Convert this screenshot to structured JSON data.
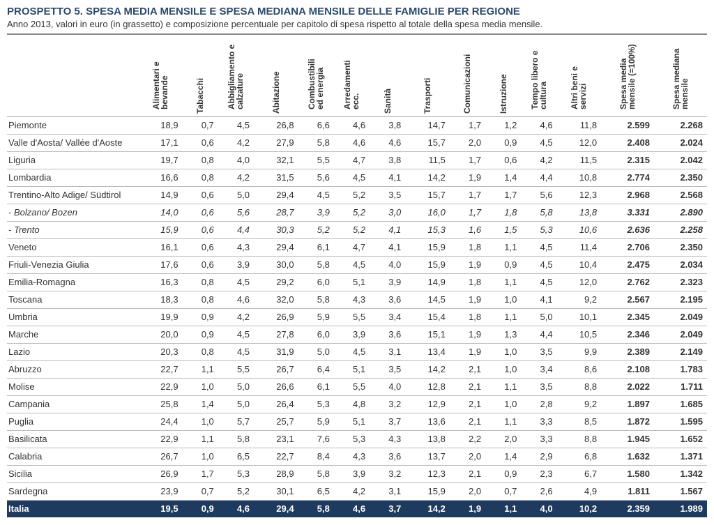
{
  "header": {
    "title": "PROSPETTO 5. SPESA MEDIA MENSILE E SPESA MEDIANA MENSILE DELLE FAMIGLIE PER REGIONE",
    "subtitle": "Anno 2013, valori in euro (in grassetto) e composizione percentuale per capitolo di spesa rispetto al totale della spesa media mensile."
  },
  "table": {
    "type": "table",
    "columns": [
      "",
      "Alimentari e bevande",
      "Tabacchi",
      "Abbigliamento e calzature",
      "Abitazione",
      "Combustibili ed energia",
      "Arredamenti ecc.",
      "Sanità",
      "Trasporti",
      "Comunicazioni",
      "Istruzione",
      "Tempo libero e cultura",
      "Altri beni e servizi",
      "Spesa media mensile (=100%)",
      "Spesa mediana mensile"
    ],
    "col_classes": [
      "region-cell",
      "",
      "",
      "",
      "",
      "",
      "",
      "",
      "",
      "",
      "",
      "",
      "",
      "bold-cell",
      "bold-cell"
    ],
    "total_row_color": "#1f3a5f",
    "header_border_color": "#888888",
    "row_border_color": "#bbbbbb",
    "fontsize": 13,
    "rows": [
      {
        "region": "Piemonte",
        "vals": [
          "18,9",
          "0,7",
          "4,5",
          "26,8",
          "6,6",
          "4,6",
          "3,8",
          "14,7",
          "1,7",
          "1,2",
          "4,6",
          "11,8",
          "2.599",
          "2.268"
        ]
      },
      {
        "region": "Valle d'Aosta/ Vallée d'Aoste",
        "vals": [
          "17,1",
          "0,6",
          "4,2",
          "27,9",
          "5,8",
          "4,6",
          "4,6",
          "15,7",
          "2,0",
          "0,9",
          "4,5",
          "12,0",
          "2.408",
          "2.024"
        ]
      },
      {
        "region": "Liguria",
        "vals": [
          "19,7",
          "0,8",
          "4,0",
          "32,1",
          "5,5",
          "4,7",
          "3,8",
          "11,5",
          "1,7",
          "0,6",
          "4,2",
          "11,5",
          "2.315",
          "2.042"
        ]
      },
      {
        "region": "Lombardia",
        "vals": [
          "16,6",
          "0,8",
          "4,2",
          "31,5",
          "5,6",
          "4,5",
          "4,1",
          "14,2",
          "1,9",
          "1,4",
          "4,4",
          "10,8",
          "2.774",
          "2.350"
        ]
      },
      {
        "region": "Trentino-Alto Adige/ Südtirol",
        "vals": [
          "14,9",
          "0,6",
          "5,0",
          "29,4",
          "4,5",
          "5,2",
          "3,5",
          "15,7",
          "1,7",
          "1,7",
          "5,6",
          "12,3",
          "2.968",
          "2.568"
        ]
      },
      {
        "region": "- Bolzano/ Bozen",
        "italic": true,
        "vals": [
          "14,0",
          "0,6",
          "5,6",
          "28,7",
          "3,9",
          "5,2",
          "3,0",
          "16,0",
          "1,7",
          "1,8",
          "5,8",
          "13,8",
          "3.331",
          "2.890"
        ]
      },
      {
        "region": "- Trento",
        "italic": true,
        "vals": [
          "15,9",
          "0,6",
          "4,4",
          "30,3",
          "5,2",
          "5,2",
          "4,1",
          "15,3",
          "1,6",
          "1,5",
          "5,3",
          "10,6",
          "2.636",
          "2.258"
        ]
      },
      {
        "region": "Veneto",
        "vals": [
          "16,1",
          "0,6",
          "4,3",
          "29,4",
          "6,1",
          "4,7",
          "4,1",
          "15,9",
          "1,8",
          "1,1",
          "4,5",
          "11,4",
          "2.706",
          "2.350"
        ]
      },
      {
        "region": "Friuli-Venezia Giulia",
        "vals": [
          "17,6",
          "0,6",
          "3,9",
          "30,0",
          "5,8",
          "4,5",
          "4,0",
          "15,9",
          "1,9",
          "0,9",
          "4,5",
          "10,4",
          "2.475",
          "2.034"
        ]
      },
      {
        "region": "Emilia-Romagna",
        "vals": [
          "16,3",
          "0,8",
          "4,5",
          "29,2",
          "6,0",
          "5,1",
          "3,9",
          "14,9",
          "1,8",
          "1,1",
          "4,5",
          "12,0",
          "2.762",
          "2.323"
        ]
      },
      {
        "region": "Toscana",
        "vals": [
          "18,3",
          "0,8",
          "4,6",
          "32,0",
          "5,8",
          "4,3",
          "3,6",
          "14,5",
          "1,9",
          "1,0",
          "4,1",
          "9,2",
          "2.567",
          "2.195"
        ]
      },
      {
        "region": "Umbria",
        "vals": [
          "19,9",
          "0,9",
          "4,2",
          "26,9",
          "5,9",
          "5,5",
          "3,4",
          "15,4",
          "1,8",
          "1,1",
          "5,0",
          "10,1",
          "2.345",
          "2.049"
        ]
      },
      {
        "region": "Marche",
        "vals": [
          "20,0",
          "0,9",
          "4,5",
          "27,8",
          "6,0",
          "3,9",
          "3,6",
          "15,1",
          "1,9",
          "1,3",
          "4,4",
          "10,5",
          "2.346",
          "2.049"
        ]
      },
      {
        "region": "Lazio",
        "vals": [
          "20,3",
          "0,8",
          "4,5",
          "31,9",
          "5,0",
          "4,5",
          "3,1",
          "13,4",
          "1,9",
          "1,0",
          "3,5",
          "9,9",
          "2.389",
          "2.149"
        ]
      },
      {
        "region": "Abruzzo",
        "vals": [
          "22,7",
          "1,1",
          "5,5",
          "26,7",
          "6,4",
          "5,1",
          "3,5",
          "14,2",
          "2,1",
          "1,0",
          "3,4",
          "8,6",
          "2.108",
          "1.783"
        ]
      },
      {
        "region": "Molise",
        "vals": [
          "22,9",
          "1,0",
          "5,0",
          "26,6",
          "6,1",
          "5,5",
          "4,0",
          "12,8",
          "2,1",
          "1,1",
          "3,5",
          "8,8",
          "2.022",
          "1.711"
        ]
      },
      {
        "region": "Campania",
        "vals": [
          "25,8",
          "1,4",
          "5,0",
          "26,4",
          "5,3",
          "4,8",
          "3,2",
          "12,9",
          "2,1",
          "1,0",
          "2,8",
          "9,2",
          "1.897",
          "1.685"
        ]
      },
      {
        "region": "Puglia",
        "vals": [
          "24,4",
          "1,0",
          "5,7",
          "25,7",
          "5,9",
          "5,1",
          "3,7",
          "13,6",
          "2,1",
          "1,1",
          "3,3",
          "8,5",
          "1.872",
          "1.595"
        ]
      },
      {
        "region": "Basilicata",
        "vals": [
          "22,9",
          "1,1",
          "5,8",
          "23,1",
          "7,6",
          "5,3",
          "4,3",
          "13,8",
          "2,2",
          "2,0",
          "3,3",
          "8,8",
          "1.945",
          "1.652"
        ]
      },
      {
        "region": "Calabria",
        "vals": [
          "26,7",
          "1,0",
          "6,5",
          "22,7",
          "8,4",
          "4,3",
          "3,6",
          "13,7",
          "2,0",
          "1,4",
          "2,9",
          "6,8",
          "1.632",
          "1.371"
        ]
      },
      {
        "region": "Sicilia",
        "vals": [
          "26,9",
          "1,7",
          "5,3",
          "28,9",
          "5,8",
          "3,9",
          "3,2",
          "12,3",
          "2,1",
          "0,9",
          "2,3",
          "6,7",
          "1.580",
          "1.342"
        ]
      },
      {
        "region": "Sardegna",
        "vals": [
          "23,9",
          "0,7",
          "5,2",
          "30,1",
          "6,5",
          "4,2",
          "3,1",
          "15,9",
          "2,0",
          "0,7",
          "2,6",
          "4,9",
          "1.811",
          "1.567"
        ]
      },
      {
        "region": "Italia",
        "total": true,
        "vals": [
          "19,5",
          "0,9",
          "4,6",
          "29,4",
          "5,8",
          "4,6",
          "3,7",
          "14,2",
          "1,9",
          "1,1",
          "4,0",
          "10,2",
          "2.359",
          "1.989"
        ]
      }
    ]
  }
}
